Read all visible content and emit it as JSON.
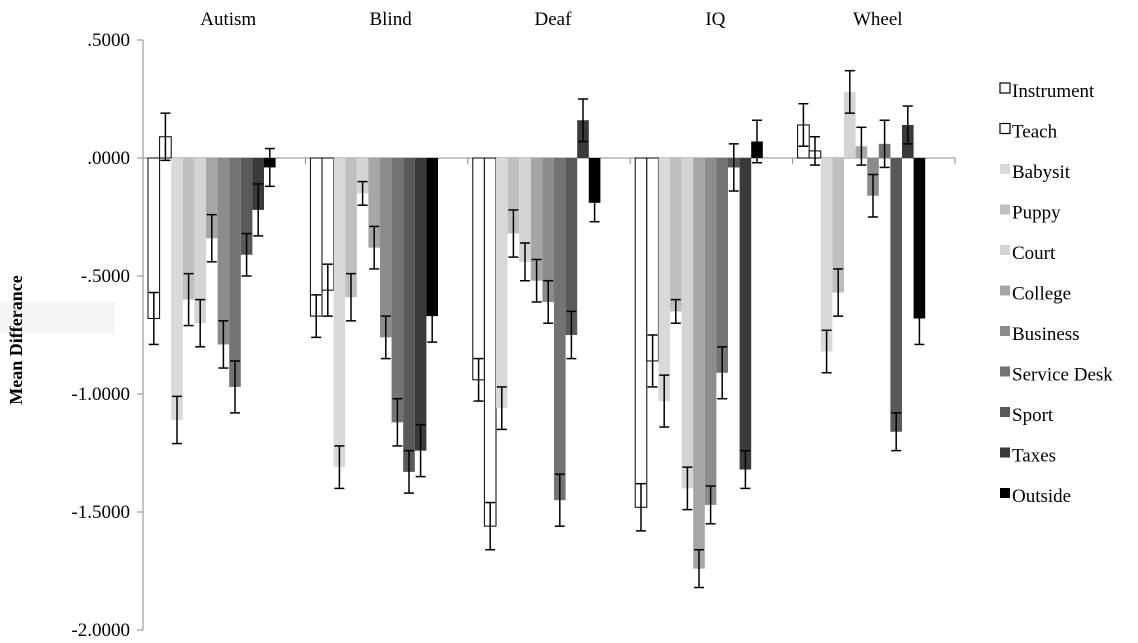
{
  "chart_data": {
    "type": "bar",
    "title": "",
    "xlabel": "",
    "ylabel": "Mean Differance",
    "ylim": [
      -2.0,
      0.5
    ],
    "yticks": [
      ".5000",
      ".0000",
      "-.5000",
      "-1.0000",
      "-1.5000",
      "-2.0000"
    ],
    "categories": [
      "Autism",
      "Blind",
      "Deaf",
      "IQ",
      "Wheel"
    ],
    "legend_position": "right",
    "grid": false,
    "series": [
      {
        "name": "Instrument",
        "fill": "#ffffff",
        "stroke": "#000000",
        "values": [
          -0.68,
          -0.67,
          -0.94,
          -1.48,
          0.14
        ],
        "errors": [
          0.11,
          0.09,
          0.09,
          0.1,
          0.09
        ]
      },
      {
        "name": "Teach",
        "fill": "#ffffff",
        "stroke": "#000000",
        "values": [
          0.09,
          -0.56,
          -1.56,
          -0.86,
          0.03
        ],
        "errors": [
          0.1,
          0.11,
          0.1,
          0.11,
          0.06
        ]
      },
      {
        "name": "Babysit",
        "fill": "#d9d9d9",
        "stroke": "none",
        "values": [
          -1.11,
          -1.31,
          -1.06,
          -1.03,
          -0.82
        ],
        "errors": [
          0.1,
          0.09,
          0.09,
          0.11,
          0.09
        ]
      },
      {
        "name": "Puppy",
        "fill": "#bfbfbf",
        "stroke": "none",
        "values": [
          -0.6,
          -0.59,
          -0.32,
          -0.65,
          -0.57
        ],
        "errors": [
          0.11,
          0.1,
          0.1,
          0.05,
          0.1
        ]
      },
      {
        "name": "Court",
        "fill": "#d4d4d4",
        "stroke": "none",
        "values": [
          -0.7,
          -0.15,
          -0.44,
          -1.4,
          0.28
        ],
        "errors": [
          0.1,
          0.05,
          0.08,
          0.09,
          0.09
        ]
      },
      {
        "name": "College",
        "fill": "#a6a6a6",
        "stroke": "none",
        "values": [
          -0.34,
          -0.38,
          -0.52,
          -1.74,
          0.05
        ],
        "errors": [
          0.1,
          0.09,
          0.09,
          0.08,
          0.08
        ]
      },
      {
        "name": "Business",
        "fill": "#8c8c8c",
        "stroke": "none",
        "values": [
          -0.79,
          -0.76,
          -0.61,
          -1.47,
          -0.16
        ],
        "errors": [
          0.1,
          0.09,
          0.09,
          0.08,
          0.09
        ]
      },
      {
        "name": "Service Desk",
        "fill": "#737373",
        "stroke": "none",
        "values": [
          -0.97,
          -1.12,
          -1.45,
          -0.91,
          0.06
        ],
        "errors": [
          0.11,
          0.1,
          0.11,
          0.11,
          0.1
        ]
      },
      {
        "name": "Sport",
        "fill": "#595959",
        "stroke": "none",
        "values": [
          -0.41,
          -1.33,
          -0.75,
          -0.04,
          -1.16
        ],
        "errors": [
          0.09,
          0.09,
          0.1,
          0.1,
          0.08
        ]
      },
      {
        "name": "Taxes",
        "fill": "#3a3a3a",
        "stroke": "none",
        "values": [
          -0.22,
          -1.24,
          0.16,
          -1.32,
          0.14
        ],
        "errors": [
          0.11,
          0.11,
          0.09,
          0.08,
          0.08
        ]
      },
      {
        "name": "Outside",
        "fill": "#000000",
        "stroke": "none",
        "values": [
          -0.04,
          -0.67,
          -0.19,
          0.07,
          -0.68
        ],
        "errors": [
          0.08,
          0.11,
          0.08,
          0.09,
          0.11
        ]
      }
    ]
  }
}
